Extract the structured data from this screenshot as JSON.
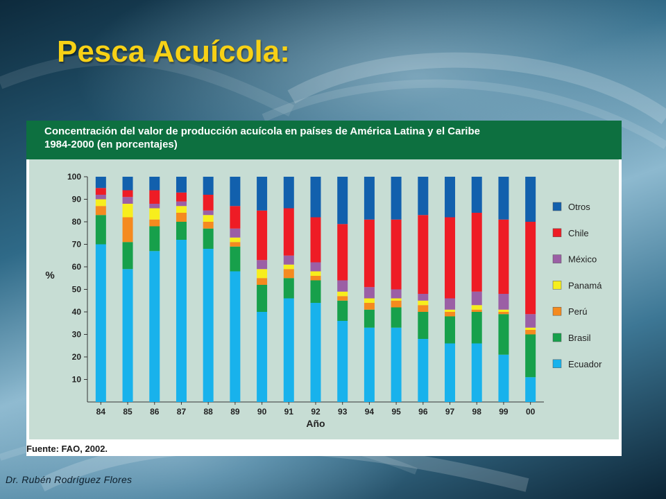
{
  "slide": {
    "title": "Pesca Acuícola:",
    "author": "Dr. Rubén Rodríguez Flores"
  },
  "figure": {
    "title_line1": "Concentración del valor de producción acuícola en países de América Latina y el Caribe",
    "title_line2": "1984-2000 (en porcentajes)",
    "source": "Fuente: FAO, 2002."
  },
  "colors": {
    "Ecuador": "#18b2ec",
    "Brasil": "#17a04b",
    "Perú": "#f58a1f",
    "Panamá": "#f7ee1d",
    "México": "#9b5fa5",
    "Chile": "#ee1c25",
    "Otros": "#1260ad"
  },
  "chart_data": {
    "type": "bar",
    "stacked": true,
    "title": "Concentración del valor de producción acuícola en países de América Latina y el Caribe 1984-2000 (en porcentajes)",
    "xlabel": "Año",
    "ylabel": "%",
    "ylim": [
      0,
      100
    ],
    "yticks": [
      10,
      20,
      30,
      40,
      50,
      60,
      70,
      80,
      90,
      100
    ],
    "grid": false,
    "legend_position": "right",
    "legend_order": [
      "Otros",
      "Chile",
      "México",
      "Panamá",
      "Perú",
      "Brasil",
      "Ecuador"
    ],
    "categories": [
      "84",
      "85",
      "86",
      "87",
      "88",
      "89",
      "90",
      "91",
      "92",
      "93",
      "94",
      "95",
      "96",
      "97",
      "98",
      "99",
      "00"
    ],
    "series": [
      {
        "name": "Ecuador",
        "values": [
          70,
          59,
          67,
          72,
          68,
          58,
          40,
          46,
          44,
          36,
          33,
          33,
          28,
          26,
          26,
          21,
          11
        ]
      },
      {
        "name": "Brasil",
        "values": [
          13,
          12,
          11,
          8,
          9,
          11,
          12,
          9,
          10,
          9,
          8,
          9,
          12,
          12,
          14,
          18,
          19
        ]
      },
      {
        "name": "Perú",
        "values": [
          4,
          11,
          3,
          4,
          3,
          2,
          3,
          4,
          2,
          2,
          3,
          3,
          3,
          2,
          1,
          1,
          2
        ]
      },
      {
        "name": "Panamá",
        "values": [
          3,
          6,
          5,
          3,
          3,
          2,
          4,
          2,
          2,
          2,
          2,
          1,
          2,
          1,
          2,
          1,
          1
        ]
      },
      {
        "name": "México",
        "values": [
          2,
          3,
          2,
          2,
          2,
          4,
          4,
          4,
          4,
          5,
          5,
          4,
          3,
          5,
          6,
          7,
          6
        ]
      },
      {
        "name": "Chile",
        "values": [
          3,
          3,
          6,
          4,
          7,
          10,
          22,
          21,
          20,
          25,
          30,
          31,
          35,
          36,
          35,
          33,
          41
        ]
      },
      {
        "name": "Otros",
        "values": [
          5,
          6,
          6,
          7,
          8,
          13,
          15,
          14,
          18,
          21,
          19,
          19,
          17,
          18,
          16,
          19,
          20
        ]
      }
    ]
  }
}
